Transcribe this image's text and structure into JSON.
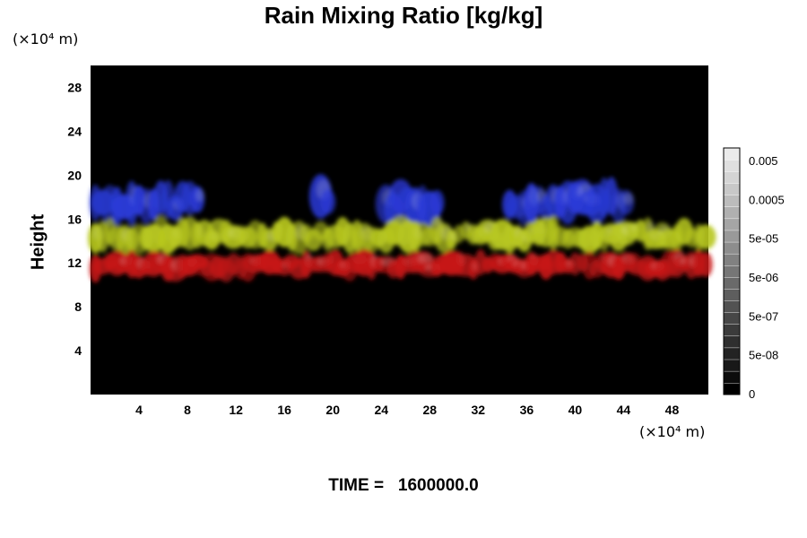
{
  "title": "Rain Mixing Ratio [kg/kg]",
  "y_unit": "(×10⁴ m)",
  "x_unit": "(×10⁴ m)",
  "ylabel": "Height",
  "time": {
    "label": "TIME =",
    "value": "1600000.0"
  },
  "colors": {
    "background": "#000000",
    "blue": "#2a3ad8",
    "yellow": "#b8c820",
    "red": "#c81818"
  },
  "chart_data": {
    "type": "heatmap",
    "title": "Rain Mixing Ratio [kg/kg]",
    "ylabel": "Height",
    "x_ticks": [
      4,
      8,
      12,
      16,
      20,
      24,
      28,
      32,
      36,
      40,
      44,
      48
    ],
    "y_ticks": [
      4,
      8,
      12,
      16,
      20,
      24,
      28
    ],
    "xlim": [
      0,
      51
    ],
    "ylim": [
      0,
      30
    ],
    "colorbar": {
      "labels": [
        "0.005",
        "0.0005",
        "5e-05",
        "5e-06",
        "5e-07",
        "5e-08",
        "0"
      ],
      "levels": 21,
      "style": "grayscale"
    },
    "layers": [
      {
        "color": "blue",
        "height_range": [
          15.5,
          19.5
        ]
      },
      {
        "color": "yellow",
        "height_range": [
          13,
          16
        ]
      },
      {
        "color": "red",
        "height_range": [
          10.5,
          13
        ]
      }
    ]
  }
}
